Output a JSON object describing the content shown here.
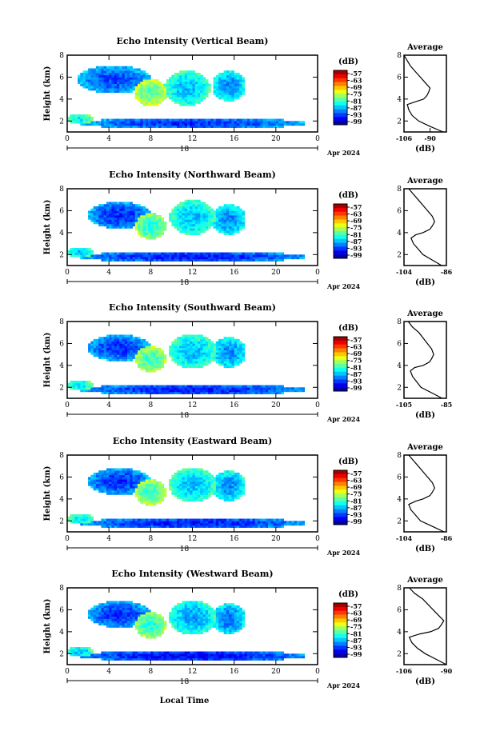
{
  "figure": {
    "x_axis_title": "Local Time",
    "date_label": "Apr 2024",
    "day_label": "18",
    "x_ticks": [
      "0",
      "4",
      "8",
      "12",
      "16",
      "20",
      "0"
    ],
    "y_axis_title": "Height (km)",
    "y_ticks": [
      "2",
      "4",
      "6",
      "8"
    ],
    "colorbar_unit": "(dB)",
    "colorbar_ticks": [
      "-57",
      "-63",
      "-69",
      "-75",
      "-81",
      "-87",
      "-93",
      "-99"
    ],
    "avg_title": "Average",
    "avg_xlabel": "(dB)"
  },
  "chart_data": [
    {
      "type": "heatmap",
      "title": "Echo Intensity (Vertical Beam)",
      "xlabel": "",
      "ylabel": "Height (km)",
      "xlim": [
        0,
        24
      ],
      "ylim": [
        1,
        8
      ],
      "zlim": [
        -99,
        -57
      ],
      "blobs": [
        {
          "t": 1.2,
          "h": 2.2,
          "a": 1.2,
          "b": 0.5,
          "v": -78
        },
        {
          "t": 4.5,
          "h": 5.8,
          "a": 3.5,
          "b": 1.3,
          "v": -85
        },
        {
          "t": 8.0,
          "h": 4.6,
          "a": 1.6,
          "b": 1.2,
          "v": -74
        },
        {
          "t": 11.5,
          "h": 5.0,
          "a": 2.2,
          "b": 1.6,
          "v": -80
        },
        {
          "t": 15.5,
          "h": 5.2,
          "a": 1.6,
          "b": 1.4,
          "v": -82
        },
        {
          "t": 12.0,
          "h": 1.8,
          "a": 11.0,
          "b": 0.5,
          "v": -86
        }
      ],
      "profile": {
        "xlim": [
          -106,
          -80
        ],
        "xticks": [
          "-106",
          "-90"
        ],
        "heights": [
          1,
          1.5,
          2,
          2.5,
          3,
          3.5,
          3.8,
          4,
          4.3,
          4.6,
          5,
          5.5,
          6,
          6.5,
          7,
          7.5,
          8
        ],
        "values": [
          -82,
          -90,
          -97,
          -101,
          -103,
          -104,
          -98,
          -94,
          -92,
          -91,
          -90,
          -93,
          -96,
          -99,
          -102,
          -104,
          -106
        ]
      }
    },
    {
      "type": "heatmap",
      "title": "Echo Intensity (Northward Beam)",
      "xlabel": "",
      "ylabel": "Height (km)",
      "xlim": [
        0,
        24
      ],
      "ylim": [
        1,
        8
      ],
      "zlim": [
        -99,
        -57
      ],
      "blobs": [
        {
          "t": 1.2,
          "h": 2.2,
          "a": 1.2,
          "b": 0.5,
          "v": -80
        },
        {
          "t": 5.0,
          "h": 5.6,
          "a": 3.0,
          "b": 1.2,
          "v": -86
        },
        {
          "t": 8.0,
          "h": 4.6,
          "a": 1.5,
          "b": 1.2,
          "v": -76
        },
        {
          "t": 12.0,
          "h": 5.4,
          "a": 2.2,
          "b": 1.6,
          "v": -80
        },
        {
          "t": 15.5,
          "h": 5.2,
          "a": 1.6,
          "b": 1.4,
          "v": -82
        },
        {
          "t": 12.0,
          "h": 1.8,
          "a": 11.0,
          "b": 0.5,
          "v": -87
        }
      ],
      "profile": {
        "xlim": [
          -104,
          -86
        ],
        "xticks": [
          "-104",
          "-86"
        ],
        "heights": [
          1,
          1.5,
          2,
          2.5,
          3,
          3.5,
          3.8,
          4,
          4.3,
          4.6,
          5,
          5.5,
          6,
          6.5,
          7,
          7.5,
          8
        ],
        "values": [
          -88,
          -92,
          -96,
          -98,
          -100,
          -101,
          -99,
          -96,
          -93,
          -92,
          -91,
          -92,
          -94,
          -96,
          -98,
          -100,
          -102
        ]
      }
    },
    {
      "type": "heatmap",
      "title": "Echo Intensity (Southward Beam)",
      "xlabel": "",
      "ylabel": "Height (km)",
      "xlim": [
        0,
        24
      ],
      "ylim": [
        1,
        8
      ],
      "zlim": [
        -99,
        -57
      ],
      "blobs": [
        {
          "t": 1.2,
          "h": 2.2,
          "a": 1.2,
          "b": 0.5,
          "v": -79
        },
        {
          "t": 5.0,
          "h": 5.6,
          "a": 3.0,
          "b": 1.2,
          "v": -86
        },
        {
          "t": 8.0,
          "h": 4.6,
          "a": 1.5,
          "b": 1.2,
          "v": -75
        },
        {
          "t": 12.0,
          "h": 5.3,
          "a": 2.2,
          "b": 1.6,
          "v": -80
        },
        {
          "t": 15.5,
          "h": 5.2,
          "a": 1.6,
          "b": 1.4,
          "v": -82
        },
        {
          "t": 12.0,
          "h": 1.8,
          "a": 11.0,
          "b": 0.5,
          "v": -87
        }
      ],
      "profile": {
        "xlim": [
          -105,
          -85
        ],
        "xticks": [
          "-105",
          "-85"
        ],
        "heights": [
          1,
          1.5,
          2,
          2.5,
          3,
          3.5,
          3.8,
          4,
          4.3,
          4.6,
          5,
          5.5,
          6,
          6.5,
          7,
          7.5,
          8
        ],
        "values": [
          -87,
          -92,
          -97,
          -99,
          -101,
          -102,
          -100,
          -96,
          -93,
          -92,
          -91,
          -92,
          -94,
          -96,
          -98,
          -101,
          -103
        ]
      }
    },
    {
      "type": "heatmap",
      "title": "Echo Intensity (Eastward Beam)",
      "xlabel": "",
      "ylabel": "Height (km)",
      "xlim": [
        0,
        24
      ],
      "ylim": [
        1,
        8
      ],
      "zlim": [
        -99,
        -57
      ],
      "blobs": [
        {
          "t": 1.2,
          "h": 2.2,
          "a": 1.2,
          "b": 0.5,
          "v": -79
        },
        {
          "t": 5.0,
          "h": 5.6,
          "a": 3.0,
          "b": 1.2,
          "v": -86
        },
        {
          "t": 8.0,
          "h": 4.6,
          "a": 1.5,
          "b": 1.2,
          "v": -75
        },
        {
          "t": 12.0,
          "h": 5.3,
          "a": 2.2,
          "b": 1.6,
          "v": -80
        },
        {
          "t": 15.5,
          "h": 5.2,
          "a": 1.6,
          "b": 1.4,
          "v": -82
        },
        {
          "t": 12.0,
          "h": 1.8,
          "a": 11.0,
          "b": 0.5,
          "v": -87
        }
      ],
      "profile": {
        "xlim": [
          -104,
          -86
        ],
        "xticks": [
          "-104",
          "-86"
        ],
        "heights": [
          1,
          1.5,
          2,
          2.5,
          3,
          3.5,
          3.8,
          4,
          4.3,
          4.6,
          5,
          5.5,
          6,
          6.5,
          7,
          7.5,
          8
        ],
        "values": [
          -87,
          -92,
          -97,
          -99,
          -101,
          -102,
          -99,
          -96,
          -93,
          -92,
          -91,
          -92,
          -94,
          -96,
          -98,
          -100,
          -102
        ]
      }
    },
    {
      "type": "heatmap",
      "title": "Echo Intensity (Westward Beam)",
      "xlabel": "Local Time",
      "ylabel": "Height (km)",
      "xlim": [
        0,
        24
      ],
      "ylim": [
        1,
        8
      ],
      "zlim": [
        -99,
        -57
      ],
      "blobs": [
        {
          "t": 1.2,
          "h": 2.2,
          "a": 1.2,
          "b": 0.5,
          "v": -80
        },
        {
          "t": 5.0,
          "h": 5.6,
          "a": 3.0,
          "b": 1.2,
          "v": -86
        },
        {
          "t": 8.0,
          "h": 4.6,
          "a": 1.5,
          "b": 1.2,
          "v": -76
        },
        {
          "t": 12.0,
          "h": 5.3,
          "a": 2.2,
          "b": 1.6,
          "v": -81
        },
        {
          "t": 15.5,
          "h": 5.2,
          "a": 1.6,
          "b": 1.4,
          "v": -83
        },
        {
          "t": 12.0,
          "h": 1.8,
          "a": 11.0,
          "b": 0.5,
          "v": -88
        }
      ],
      "profile": {
        "xlim": [
          -106,
          -90
        ],
        "xticks": [
          "-106",
          "-90"
        ],
        "heights": [
          1,
          1.5,
          2,
          2.5,
          3,
          3.5,
          3.8,
          4,
          4.3,
          4.6,
          5,
          5.5,
          6,
          6.5,
          7,
          7.5,
          8
        ],
        "values": [
          -90,
          -94,
          -98,
          -101,
          -103,
          -104,
          -100,
          -96,
          -93,
          -92,
          -91,
          -93,
          -95,
          -97,
          -99,
          -102,
          -104
        ]
      }
    }
  ]
}
